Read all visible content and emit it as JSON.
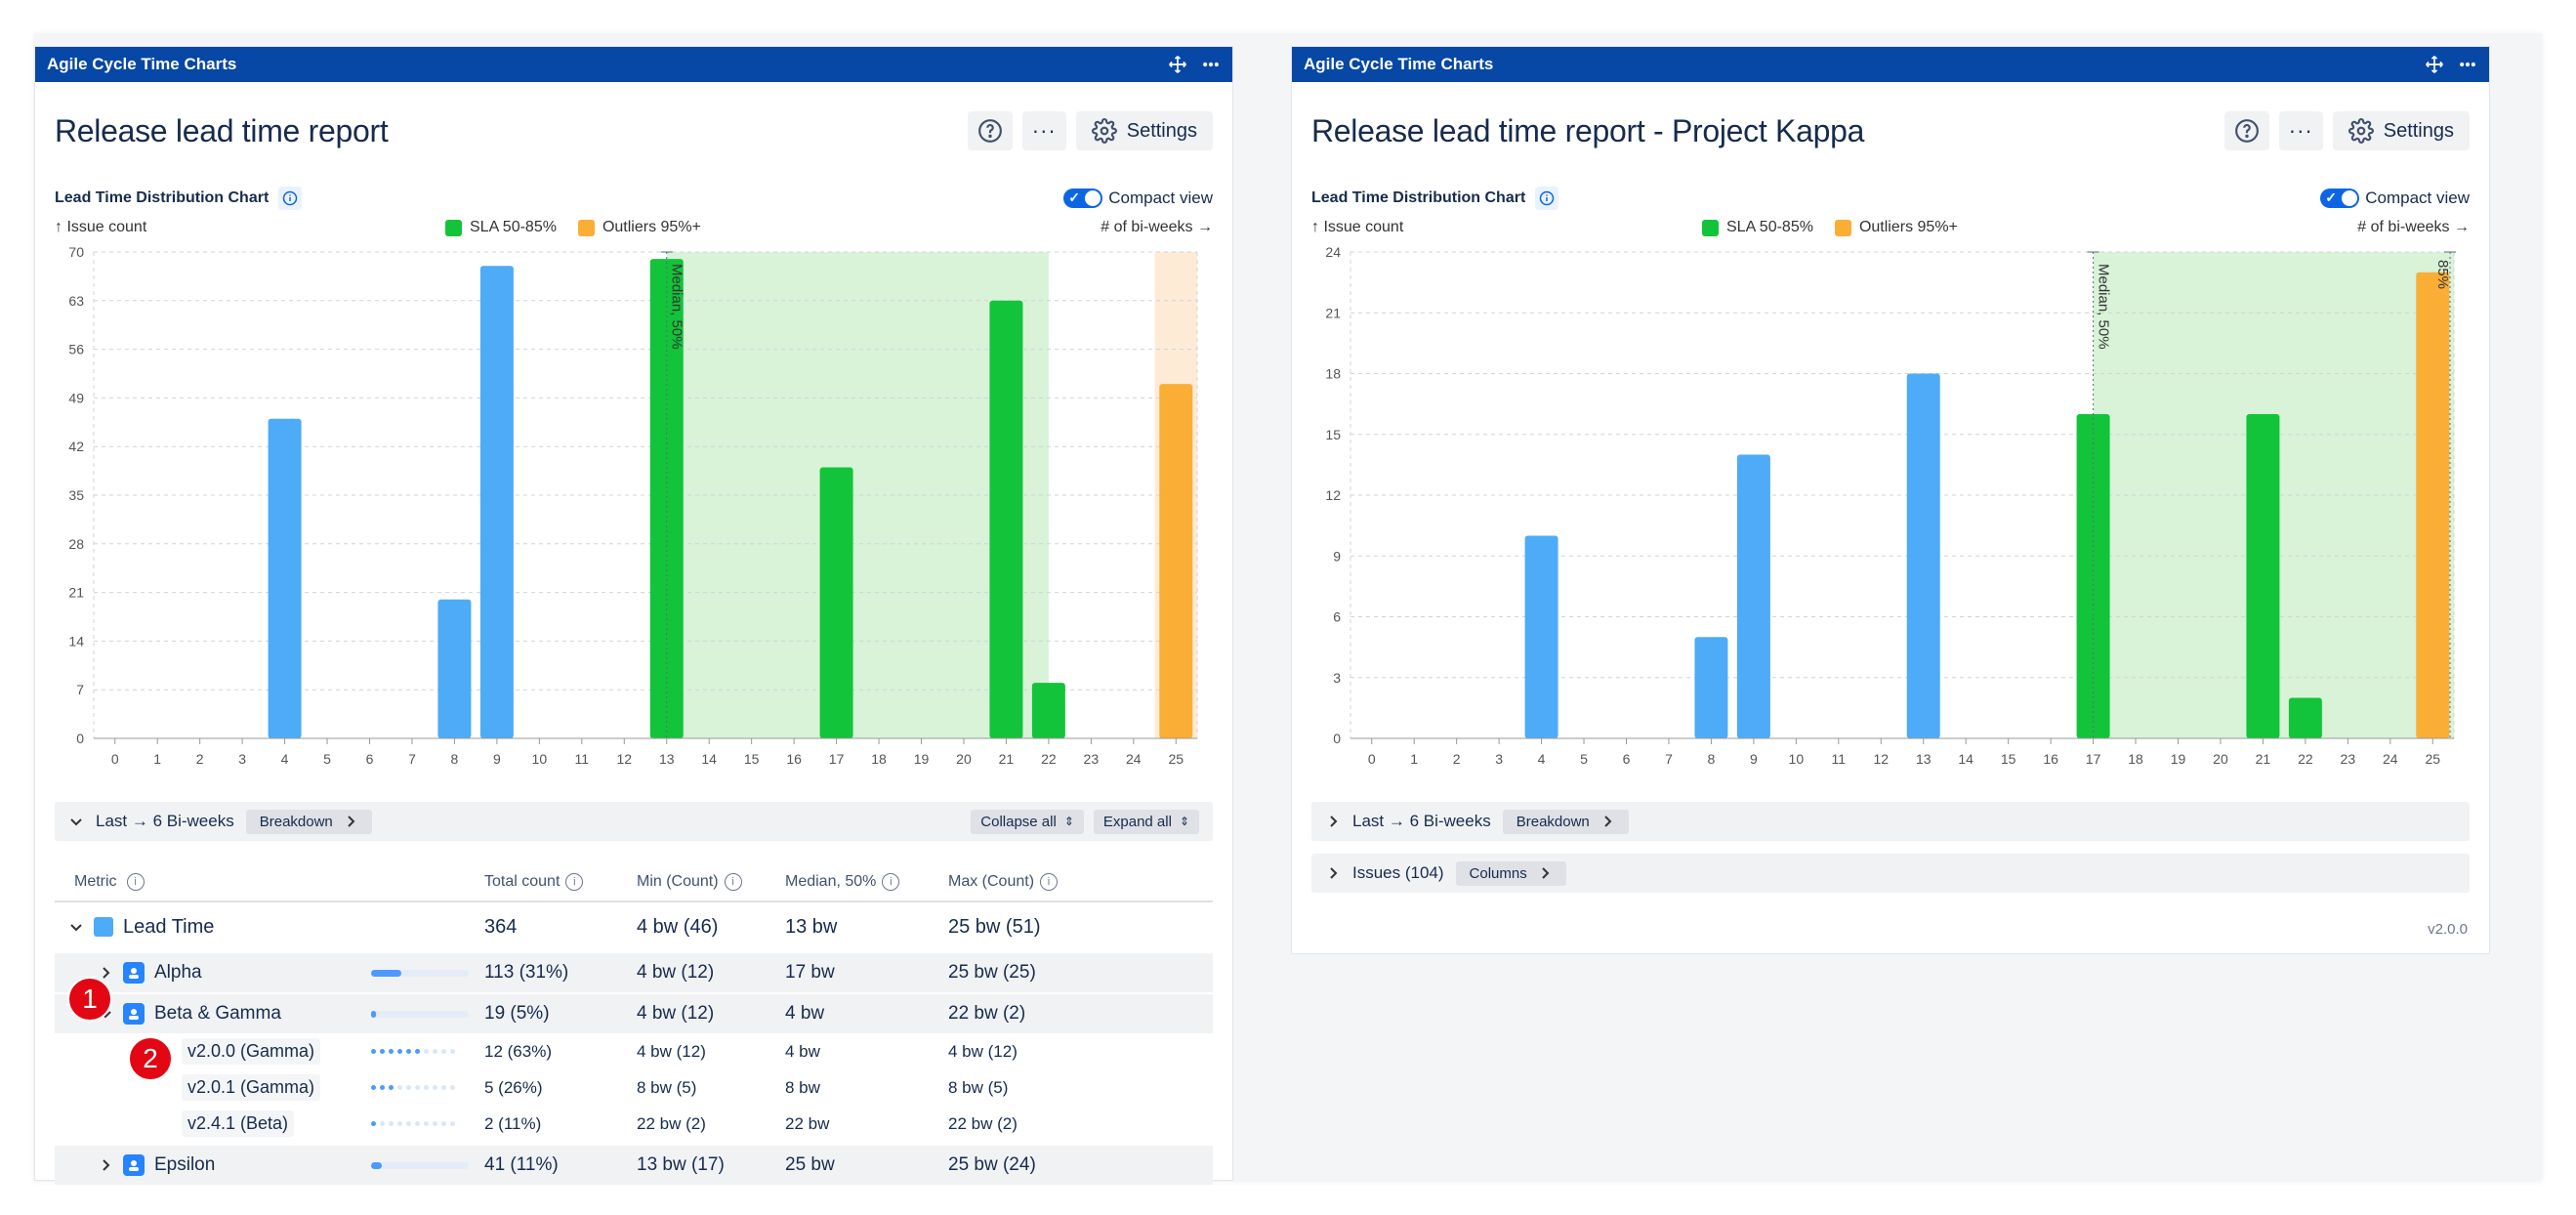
{
  "gadgets": [
    {
      "header": "Agile Cycle Time Charts",
      "title": "Release lead time report",
      "settings_label": "Settings",
      "chart_title": "Lead Time Distribution Chart",
      "compact_label": "Compact view",
      "y_label": "↑ Issue count",
      "x_label": "# of bi-weeks →",
      "legend": [
        "SLA 50-85%",
        "Outliers 95%+"
      ],
      "breakdown": {
        "range": "Last → 6 Bi-weeks",
        "pill": "Breakdown",
        "collapse": "Collapse all",
        "expand": "Expand all"
      },
      "table": {
        "headers": [
          "Metric",
          "Total count",
          "Min (Count)",
          "Median, 50%",
          "Max (Count)"
        ],
        "rows": [
          {
            "name": "Lead Time",
            "total": "364",
            "min": "4 bw (46)",
            "median": "13 bw",
            "max": "25 bw (51)"
          },
          {
            "name": "Alpha",
            "total": "113 (31%)",
            "min": "4 bw (12)",
            "median": "17 bw",
            "max": "25 bw (25)",
            "share": 0.31
          },
          {
            "name": "Beta & Gamma",
            "total": "19 (5%)",
            "min": "4 bw (12)",
            "median": "4 bw",
            "max": "22 bw (2)",
            "share": 0.05
          },
          {
            "name": "v2.0.0 (Gamma)",
            "total": "12 (63%)",
            "min": "4 bw (12)",
            "median": "4 bw",
            "max": "4 bw (12)",
            "share": 0.63
          },
          {
            "name": "v2.0.1 (Gamma)",
            "total": "5 (26%)",
            "min": "8 bw (5)",
            "median": "8 bw",
            "max": "8 bw (5)",
            "share": 0.26
          },
          {
            "name": "v2.4.1 (Beta)",
            "total": "2 (11%)",
            "min": "22 bw (2)",
            "median": "22 bw",
            "max": "22 bw (2)",
            "share": 0.11
          },
          {
            "name": "Epsilon",
            "total": "41 (11%)",
            "min": "13 bw (17)",
            "median": "25 bw",
            "max": "25 bw (24)",
            "share": 0.11
          }
        ]
      },
      "markers": [
        "1",
        "2"
      ]
    },
    {
      "header": "Agile Cycle Time Charts",
      "title": "Release lead time report - Project Kappa",
      "settings_label": "Settings",
      "chart_title": "Lead Time Distribution Chart",
      "compact_label": "Compact view",
      "y_label": "↑ Issue count",
      "x_label": "# of bi-weeks →",
      "legend": [
        "SLA 50-85%",
        "Outliers 95%+"
      ],
      "breakdown": {
        "range": "Last → 6 Bi-weeks",
        "pill": "Breakdown"
      },
      "issues": {
        "label": "Issues (104)",
        "pill": "Columns"
      },
      "version": "v2.0.0"
    }
  ],
  "colors": {
    "header": "#0747a6",
    "normal": "#4dabf7",
    "sla": "#12c43a",
    "outlier": "#fbae35",
    "sla_band": "#d8f3d8",
    "outlier_band": "#feebd6"
  },
  "chart_data": [
    {
      "type": "bar",
      "title": "Lead Time Distribution Chart",
      "xlabel": "# of bi-weeks",
      "ylabel": "Issue count",
      "categories": [
        0,
        1,
        2,
        3,
        4,
        5,
        6,
        7,
        8,
        9,
        10,
        11,
        12,
        13,
        14,
        15,
        16,
        17,
        18,
        19,
        20,
        21,
        22,
        23,
        24,
        25
      ],
      "values": [
        0,
        0,
        0,
        0,
        46,
        0,
        0,
        0,
        20,
        68,
        0,
        0,
        0,
        69,
        0,
        0,
        0,
        39,
        0,
        0,
        0,
        63,
        8,
        0,
        0,
        51
      ],
      "ylim": [
        0,
        70
      ],
      "yticks": [
        0,
        7,
        14,
        21,
        28,
        35,
        42,
        49,
        56,
        63,
        70
      ],
      "median_x": 13,
      "median_label": "Median, 50%",
      "sla_range": [
        13,
        22
      ],
      "outlier_from": 25,
      "grid": true
    },
    {
      "type": "bar",
      "title": "Lead Time Distribution Chart",
      "xlabel": "# of bi-weeks",
      "ylabel": "Issue count",
      "categories": [
        0,
        1,
        2,
        3,
        4,
        5,
        6,
        7,
        8,
        9,
        10,
        11,
        12,
        13,
        14,
        15,
        16,
        17,
        18,
        19,
        20,
        21,
        22,
        23,
        24,
        25
      ],
      "values": [
        0,
        0,
        0,
        0,
        10,
        0,
        0,
        0,
        5,
        14,
        0,
        0,
        0,
        18,
        0,
        0,
        0,
        16,
        0,
        0,
        0,
        16,
        2,
        0,
        0,
        23
      ],
      "ylim": [
        0,
        24
      ],
      "yticks": [
        0,
        3,
        6,
        9,
        12,
        15,
        18,
        21,
        24
      ],
      "median_x": 17,
      "median_label": "Median, 50%",
      "p85_x": 25,
      "p85_label": "85%",
      "sla_range": [
        17,
        25
      ],
      "outlier_from": 25,
      "grid": true
    }
  ]
}
